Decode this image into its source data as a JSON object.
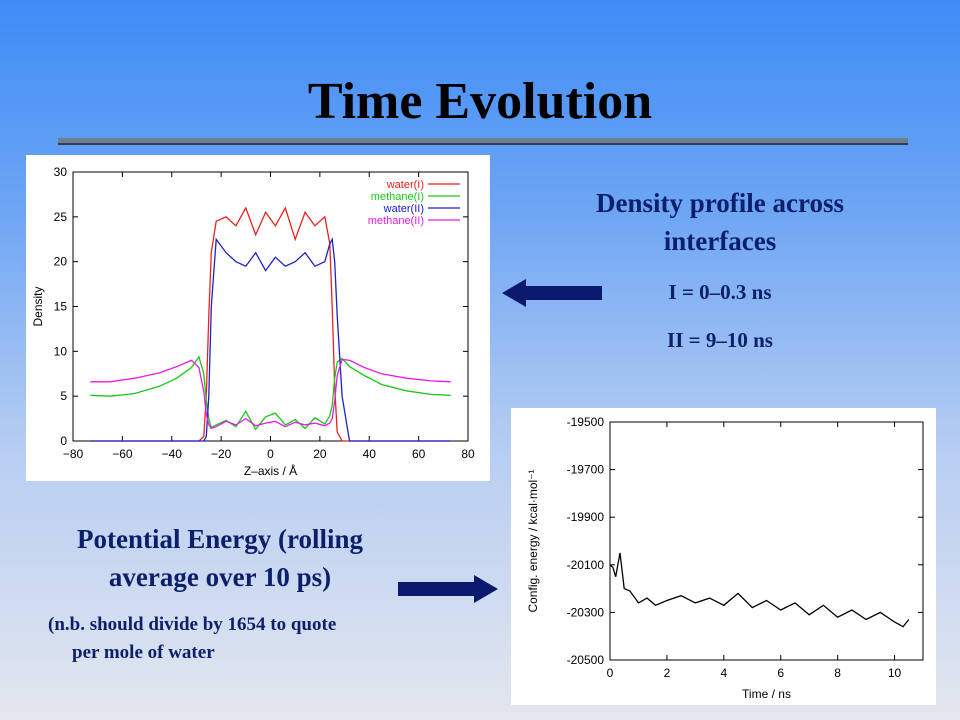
{
  "slide": {
    "title": "Time Evolution",
    "density_heading": "Density profile across interfaces",
    "density_line1": "I = 0–0.3 ns",
    "density_line2": "II = 9–10 ns",
    "energy_heading": "Potential Energy (rolling average over 10 ps)",
    "energy_note_line1": "(n.b. should divide by 1654 to quote",
    "energy_note_line2": "per mole of water"
  },
  "chart_data": [
    {
      "type": "line",
      "title": "",
      "xlabel": "Z–axis / Å",
      "ylabel": "Density",
      "xlim": [
        -80,
        80
      ],
      "ylim": [
        0,
        30
      ],
      "xticks": [
        -80,
        -60,
        -40,
        -20,
        0,
        20,
        40,
        60,
        80
      ],
      "yticks": [
        0,
        5,
        10,
        15,
        20,
        25,
        30
      ],
      "xticklabels": [
        "−80",
        "−60",
        "−40",
        "−20",
        "0",
        "20",
        "40",
        "60",
        "80"
      ],
      "yticklabels": [
        "0",
        "5",
        "10",
        "15",
        "20",
        "25",
        "30"
      ],
      "grid": false,
      "legend": "top-right",
      "x": [
        -73,
        -65,
        -55,
        -45,
        -38,
        -32,
        -29,
        -27,
        -26,
        -25,
        -24,
        -22,
        -18,
        -14,
        -10,
        -6,
        -2,
        2,
        6,
        10,
        14,
        18,
        22,
        24,
        25,
        26,
        27,
        29,
        32,
        38,
        45,
        55,
        65,
        73
      ],
      "series": [
        {
          "name": "water(I)",
          "color": "#e8231c",
          "values": [
            0,
            0,
            0,
            0,
            0,
            0,
            0,
            0.5,
            5,
            14,
            21,
            24.5,
            25,
            24,
            26,
            23,
            25.5,
            24,
            26,
            22.5,
            25.5,
            24,
            25,
            22,
            15,
            6,
            1,
            0,
            0,
            0,
            0,
            0,
            0,
            0
          ]
        },
        {
          "name": "methane(I)",
          "color": "#18c818",
          "values": [
            5.1,
            5.0,
            5.3,
            6.1,
            7.0,
            8.2,
            9.4,
            7.5,
            4.5,
            2.5,
            1.5,
            1.8,
            2.3,
            1.6,
            3.3,
            1.3,
            2.7,
            3.1,
            1.8,
            2.4,
            1.4,
            2.6,
            1.9,
            2.8,
            4.0,
            7.0,
            8.8,
            9.2,
            8.3,
            7.3,
            6.3,
            5.6,
            5.2,
            5.1
          ]
        },
        {
          "name": "water(II)",
          "color": "#1b22c8",
          "values": [
            0,
            0,
            0,
            0,
            0,
            0,
            0,
            0,
            0.5,
            5,
            15,
            22.5,
            21,
            20,
            19.5,
            21,
            19,
            20.5,
            19.5,
            20,
            21,
            19.5,
            20,
            22,
            22.5,
            20,
            14,
            5,
            0,
            0,
            0,
            0,
            0,
            0
          ]
        },
        {
          "name": "methane(II)",
          "color": "#e81ae8",
          "values": [
            6.6,
            6.6,
            7.0,
            7.6,
            8.3,
            9.0,
            8.2,
            5.5,
            3.0,
            1.8,
            1.4,
            1.6,
            2.2,
            1.8,
            2.5,
            1.7,
            2.0,
            2.2,
            1.6,
            2.1,
            1.8,
            2.0,
            1.7,
            2.0,
            2.5,
            4.5,
            7.3,
            9.1,
            9.0,
            8.2,
            7.5,
            7.0,
            6.7,
            6.6
          ]
        }
      ]
    },
    {
      "type": "line",
      "title": "",
      "xlabel": "Time / ns",
      "ylabel": "Config. energy / kcal·mol⁻¹",
      "xlim": [
        0,
        11
      ],
      "ylim": [
        -20500,
        -19500
      ],
      "xticks": [
        0,
        2,
        4,
        6,
        8,
        10
      ],
      "yticks": [
        -20500,
        -20300,
        -20100,
        -19900,
        -19700,
        -19500
      ],
      "grid": false,
      "legend": "none",
      "x": [
        0.0,
        0.1,
        0.2,
        0.35,
        0.5,
        0.7,
        1.0,
        1.3,
        1.6,
        2.0,
        2.5,
        3.0,
        3.5,
        4.0,
        4.5,
        5.0,
        5.5,
        6.0,
        6.5,
        7.0,
        7.5,
        8.0,
        8.5,
        9.0,
        9.5,
        10.0,
        10.3,
        10.5
      ],
      "series": [
        {
          "name": "",
          "color": "#000000",
          "values": [
            -20100,
            -20110,
            -20150,
            -20050,
            -20200,
            -20210,
            -20260,
            -20240,
            -20270,
            -20250,
            -20230,
            -20260,
            -20240,
            -20270,
            -20220,
            -20280,
            -20250,
            -20290,
            -20260,
            -20310,
            -20270,
            -20320,
            -20290,
            -20330,
            -20300,
            -20340,
            -20360,
            -20330
          ]
        }
      ]
    }
  ]
}
